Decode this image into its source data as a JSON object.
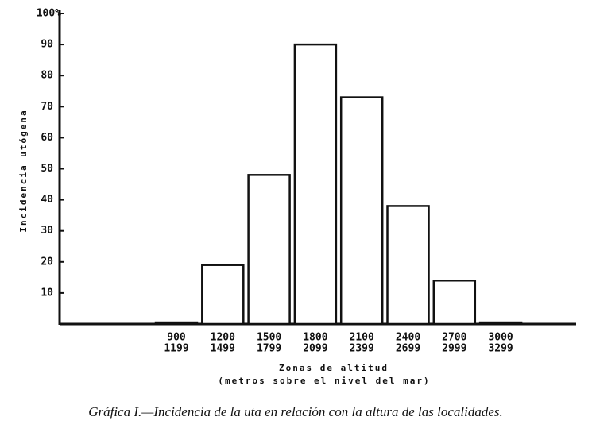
{
  "chart_data": {
    "type": "bar",
    "ylabel": "Incidencia utógena",
    "xlabel": [
      "Zonas de altitud",
      "(metros sobre el nivel del mar)"
    ],
    "caption": "Gráfica I.—Incidencia de la uta en relación con la altura de las localidades.",
    "categories": [
      [
        "900",
        "1199"
      ],
      [
        "1200",
        "1499"
      ],
      [
        "1500",
        "1799"
      ],
      [
        "1800",
        "2099"
      ],
      [
        "2100",
        "2399"
      ],
      [
        "2400",
        "2699"
      ],
      [
        "2700",
        "2999"
      ],
      [
        "3000",
        "3299"
      ]
    ],
    "values": [
      0.5,
      19,
      48,
      90,
      73,
      38,
      14,
      0.5
    ],
    "color": "#ffffff",
    "ylim": [
      0,
      100
    ],
    "yticks": [
      10,
      20,
      30,
      40,
      50,
      60,
      70,
      80,
      90,
      {
        "value": 100,
        "label": "100%"
      }
    ],
    "grid": false
  }
}
